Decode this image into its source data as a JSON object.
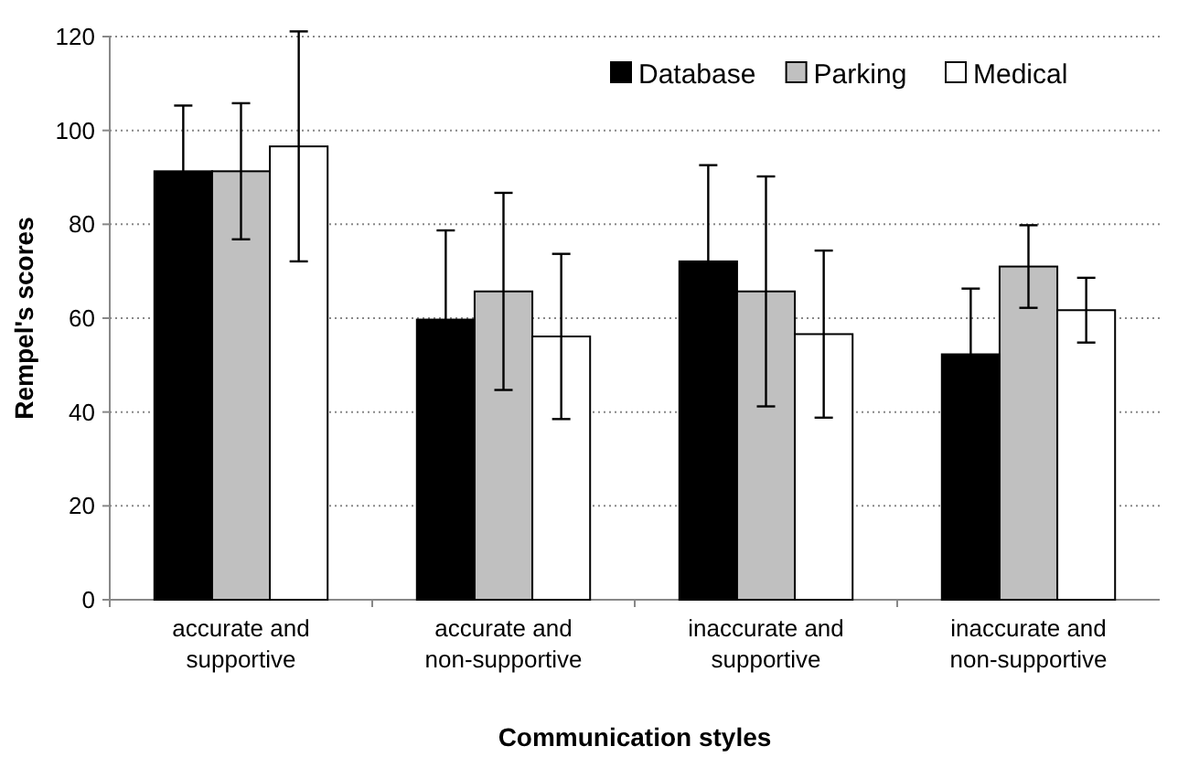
{
  "chart_data": {
    "type": "bar",
    "xlabel": "Communication styles",
    "ylabel": "Rempel's scores",
    "categories": [
      "accurate and supportive",
      "accurate and non-supportive",
      "inaccurate and supportive",
      "inaccurate and non-supportive"
    ],
    "series": [
      {
        "name": "Database",
        "color": "#000000",
        "values": [
          91.3,
          59.7,
          72.1,
          52.3
        ],
        "errors": [
          14,
          19,
          20.5,
          14
        ]
      },
      {
        "name": "Parking",
        "color": "#c0c0c0",
        "values": [
          91.3,
          65.7,
          65.7,
          71
        ],
        "errors": [
          14.5,
          21,
          24.5,
          8.8
        ]
      },
      {
        "name": "Medical",
        "color": "#ffffff",
        "values": [
          96.6,
          56.1,
          56.6,
          61.7
        ],
        "errors": [
          24.5,
          17.6,
          17.8,
          6.9
        ]
      }
    ],
    "ylim": [
      0,
      120
    ],
    "yticks": [
      0,
      20,
      40,
      60,
      80,
      100,
      120
    ],
    "grid": "y",
    "legend": "top right"
  }
}
